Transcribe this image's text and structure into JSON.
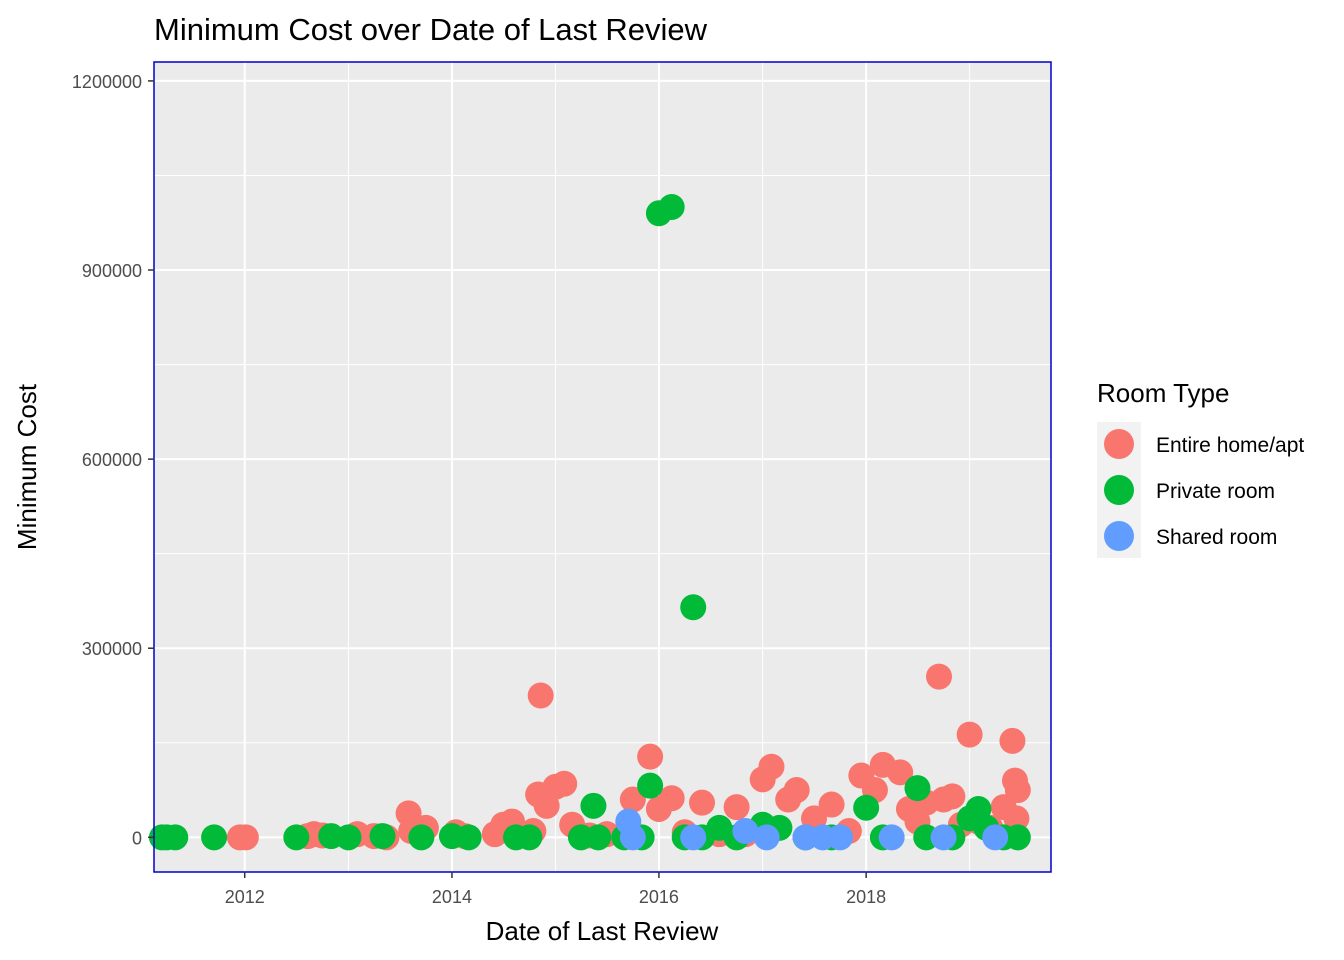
{
  "chart_data": {
    "type": "scatter",
    "title": "Minimum Cost over Date of Last Review",
    "xlabel": "Date of Last Review",
    "ylabel": "Minimum Cost",
    "x_ticks": [
      "2012",
      "2014",
      "2016",
      "2018"
    ],
    "y_ticks": [
      0,
      300000,
      600000,
      900000,
      1200000
    ],
    "xlim": [
      "2011-02-15",
      "2019-10-15"
    ],
    "ylim": [
      -55000,
      1230000
    ],
    "grid": true,
    "legend": {
      "title": "Room Type",
      "position": "right",
      "entries": [
        "Entire home/apt",
        "Private room",
        "Shared room"
      ]
    },
    "colors": {
      "Entire home/apt": "#F8766D",
      "Private room": "#00BA38",
      "Shared room": "#619CFF",
      "panel": "#EBEBEB",
      "grid": "#FFFFFF",
      "border": "#0000CC"
    },
    "series": [
      {
        "name": "Entire home/apt",
        "points": [
          [
            "2011-12-15",
            0
          ],
          [
            "2012-01-05",
            0
          ],
          [
            "2012-08-10",
            2000
          ],
          [
            "2012-09-01",
            5000
          ],
          [
            "2012-10-01",
            3000
          ],
          [
            "2013-02-01",
            5000
          ],
          [
            "2013-04-01",
            2000
          ],
          [
            "2013-05-15",
            0
          ],
          [
            "2013-08-01",
            38000
          ],
          [
            "2013-08-10",
            10000
          ],
          [
            "2013-10-01",
            15000
          ],
          [
            "2014-01-15",
            8000
          ],
          [
            "2014-02-15",
            2000
          ],
          [
            "2014-06-01",
            5000
          ],
          [
            "2014-07-01",
            20000
          ],
          [
            "2014-08-01",
            25000
          ],
          [
            "2014-09-15",
            3000
          ],
          [
            "2014-10-15",
            10000
          ],
          [
            "2014-11-01",
            68000
          ],
          [
            "2014-11-10",
            225000
          ],
          [
            "2014-12-01",
            50000
          ],
          [
            "2015-01-01",
            80000
          ],
          [
            "2015-02-01",
            85000
          ],
          [
            "2015-03-01",
            20000
          ],
          [
            "2015-05-01",
            3000
          ],
          [
            "2015-07-01",
            5000
          ],
          [
            "2015-10-01",
            60000
          ],
          [
            "2015-12-01",
            128000
          ],
          [
            "2016-01-01",
            45000
          ],
          [
            "2016-02-15",
            62000
          ],
          [
            "2016-04-01",
            8000
          ],
          [
            "2016-06-01",
            55000
          ],
          [
            "2016-08-01",
            5000
          ],
          [
            "2016-10-01",
            48000
          ],
          [
            "2016-11-01",
            5000
          ],
          [
            "2017-01-01",
            92000
          ],
          [
            "2017-02-01",
            112000
          ],
          [
            "2017-04-01",
            60000
          ],
          [
            "2017-05-01",
            75000
          ],
          [
            "2017-07-01",
            30000
          ],
          [
            "2017-09-01",
            52000
          ],
          [
            "2017-11-01",
            10000
          ],
          [
            "2017-12-15",
            98000
          ],
          [
            "2018-02-01",
            75000
          ],
          [
            "2018-03-01",
            115000
          ],
          [
            "2018-05-01",
            103000
          ],
          [
            "2018-06-01",
            45000
          ],
          [
            "2018-07-01",
            25000
          ],
          [
            "2018-08-01",
            55000
          ],
          [
            "2018-09-15",
            255000
          ],
          [
            "2018-10-01",
            60000
          ],
          [
            "2018-11-01",
            65000
          ],
          [
            "2018-12-01",
            20000
          ],
          [
            "2019-01-01",
            163000
          ],
          [
            "2019-02-01",
            25000
          ],
          [
            "2019-03-15",
            15000
          ],
          [
            "2019-05-01",
            48000
          ],
          [
            "2019-06-01",
            153000
          ],
          [
            "2019-06-10",
            90000
          ],
          [
            "2019-06-20",
            75000
          ],
          [
            "2019-06-15",
            30000
          ]
        ]
      },
      {
        "name": "Private room",
        "points": [
          [
            "2011-03-15",
            0
          ],
          [
            "2011-04-01",
            0
          ],
          [
            "2011-05-01",
            0
          ],
          [
            "2011-09-15",
            0
          ],
          [
            "2012-07-01",
            0
          ],
          [
            "2012-11-01",
            2000
          ],
          [
            "2013-01-01",
            0
          ],
          [
            "2013-05-01",
            2000
          ],
          [
            "2013-09-15",
            0
          ],
          [
            "2014-01-01",
            2000
          ],
          [
            "2014-03-01",
            0
          ],
          [
            "2014-08-15",
            0
          ],
          [
            "2014-10-01",
            0
          ],
          [
            "2015-04-01",
            0
          ],
          [
            "2015-05-15",
            50000
          ],
          [
            "2015-06-01",
            0
          ],
          [
            "2015-09-01",
            0
          ],
          [
            "2015-11-01",
            0
          ],
          [
            "2015-12-01",
            82000
          ],
          [
            "2016-01-01",
            990000
          ],
          [
            "2016-02-15",
            1000000
          ],
          [
            "2016-04-01",
            0
          ],
          [
            "2016-05-01",
            365000
          ],
          [
            "2016-06-01",
            0
          ],
          [
            "2016-08-01",
            15000
          ],
          [
            "2016-10-01",
            0
          ],
          [
            "2017-01-01",
            20000
          ],
          [
            "2017-03-01",
            15000
          ],
          [
            "2017-06-01",
            0
          ],
          [
            "2017-09-01",
            0
          ],
          [
            "2018-01-01",
            47000
          ],
          [
            "2018-03-01",
            0
          ],
          [
            "2018-07-01",
            78000
          ],
          [
            "2018-08-01",
            0
          ],
          [
            "2018-11-01",
            0
          ],
          [
            "2019-01-01",
            30000
          ],
          [
            "2019-02-01",
            45000
          ],
          [
            "2019-03-01",
            15000
          ],
          [
            "2019-05-01",
            0
          ],
          [
            "2019-06-20",
            0
          ]
        ]
      },
      {
        "name": "Shared room",
        "points": [
          [
            "2015-09-15",
            25000
          ],
          [
            "2015-10-01",
            0
          ],
          [
            "2016-05-01",
            0
          ],
          [
            "2016-11-01",
            10000
          ],
          [
            "2017-01-15",
            0
          ],
          [
            "2017-06-01",
            0
          ],
          [
            "2017-08-01",
            0
          ],
          [
            "2017-10-01",
            0
          ],
          [
            "2018-04-01",
            0
          ],
          [
            "2018-10-01",
            0
          ],
          [
            "2019-04-01",
            0
          ]
        ]
      }
    ]
  }
}
